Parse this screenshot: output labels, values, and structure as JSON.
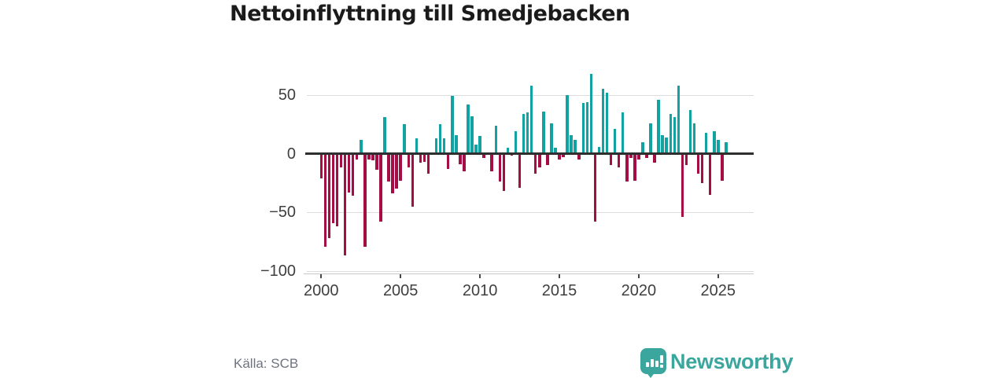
{
  "title": "Nettoinflyttning till Smedjebacken",
  "source": "Källa: SCB",
  "branding": {
    "name": "Newsworthy"
  },
  "colors": {
    "positive": "#12a2a2",
    "negative": "#a50d45",
    "zero_line": "#2f2f2f",
    "grid": "#dcdcdc",
    "axis_line": "#c9c9c9",
    "tick_text": "#3f3f3f",
    "muted_text": "#6d7380",
    "brand": "#3aa69e",
    "title_text": "#1b1b1b"
  },
  "chart_data": {
    "type": "bar",
    "title": "Nettoinflyttning till Smedjebacken",
    "frequency": "quarterly",
    "x_start": {
      "year": 2000,
      "quarter": 1
    },
    "x_end": {
      "year": 2025,
      "quarter": 3
    },
    "values": [
      -21,
      -79,
      -72,
      -59,
      -62,
      -12,
      -87,
      -33,
      -36,
      -5,
      12,
      -79,
      -5,
      -6,
      -14,
      -58,
      31,
      -24,
      -34,
      -30,
      -23,
      25,
      -12,
      -45,
      13,
      -8,
      -7,
      -17,
      1,
      13,
      25,
      13,
      -13,
      49,
      16,
      -9,
      -15,
      42,
      32,
      8,
      15,
      -4,
      1,
      -15,
      24,
      -24,
      -32,
      5,
      -2,
      19,
      -29,
      34,
      35,
      58,
      -17,
      -12,
      36,
      -10,
      26,
      5,
      -5,
      -3,
      50,
      16,
      12,
      -5,
      43,
      44,
      68,
      -58,
      6,
      55,
      52,
      -10,
      21,
      -12,
      35,
      -24,
      -4,
      -23,
      -5,
      10,
      -4,
      26,
      -8,
      46,
      16,
      14,
      34,
      31,
      58,
      -54,
      -10,
      37,
      26,
      -17,
      -25,
      18,
      -35,
      19,
      12,
      -23,
      10
    ],
    "y_ticks": [
      50,
      0,
      -50,
      -100
    ],
    "y_tick_labels": [
      "50",
      "0",
      "−50",
      "−100"
    ],
    "x_tick_years": [
      2000,
      2005,
      2010,
      2015,
      2020,
      2025
    ],
    "x_tick_labels": [
      "2000",
      "2005",
      "2010",
      "2015",
      "2020",
      "2025"
    ],
    "ylim": [
      -100,
      75
    ],
    "grid": true,
    "legend": "none",
    "positive_color": "#12a2a2",
    "negative_color": "#a50d45"
  }
}
